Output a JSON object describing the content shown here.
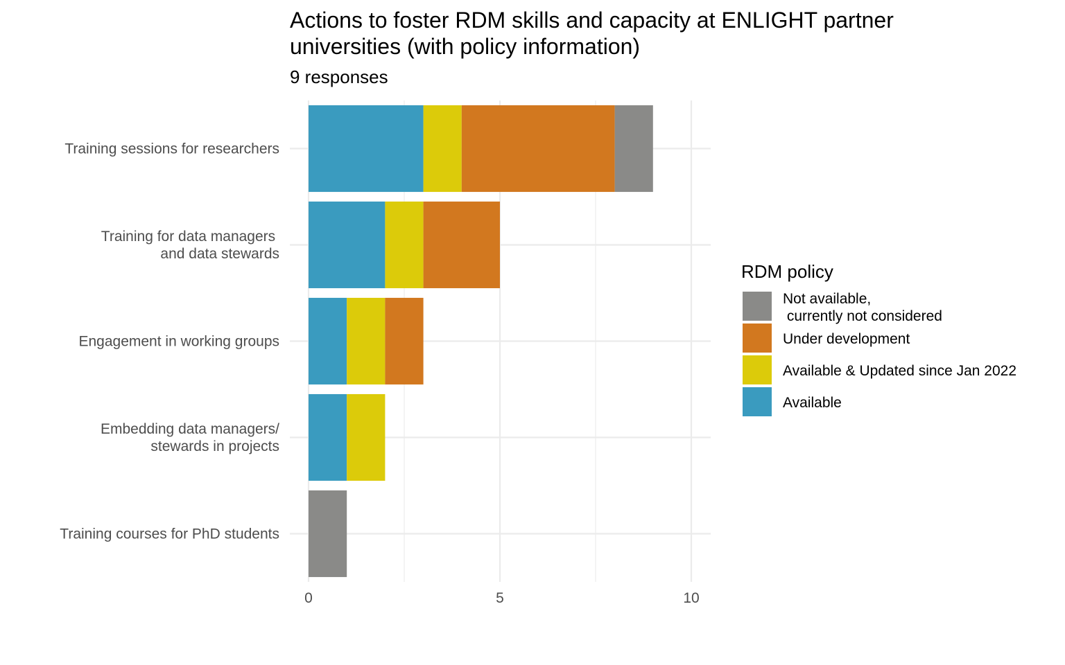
{
  "chart_data": {
    "type": "bar",
    "orientation": "horizontal",
    "stacked": true,
    "title": "Actions to foster RDM skills and capacity at ENLIGHT partner\n universities (with policy information)",
    "subtitle": "9 responses",
    "xlabel": "",
    "ylabel": "",
    "xlim": [
      0,
      10.5
    ],
    "xticks": [
      0,
      5,
      10
    ],
    "grid": true,
    "categories": [
      "Training sessions for researchers",
      "Training for data managers \nand data stewards",
      "Engagement in working groups",
      "Embedding data managers/\nstewards in projects",
      "Training courses for PhD students"
    ],
    "series": [
      {
        "name": "Available",
        "color": "#3a9bbf",
        "values": [
          3,
          2,
          1,
          1,
          0
        ]
      },
      {
        "name": "Available & Updated since Jan 2022",
        "color": "#dccb0a",
        "values": [
          1,
          1,
          1,
          1,
          0
        ]
      },
      {
        "name": "Under development",
        "color": "#d2781f",
        "values": [
          4,
          2,
          1,
          0,
          0
        ]
      },
      {
        "name": "Not available,\n currently not considered",
        "color": "#8a8a88",
        "values": [
          1,
          0,
          0,
          0,
          1
        ]
      }
    ],
    "legend": {
      "title": "RDM policy",
      "position": "right",
      "order": [
        "Not available,\n currently not considered",
        "Under development",
        "Available & Updated since Jan 2022",
        "Available"
      ]
    }
  }
}
